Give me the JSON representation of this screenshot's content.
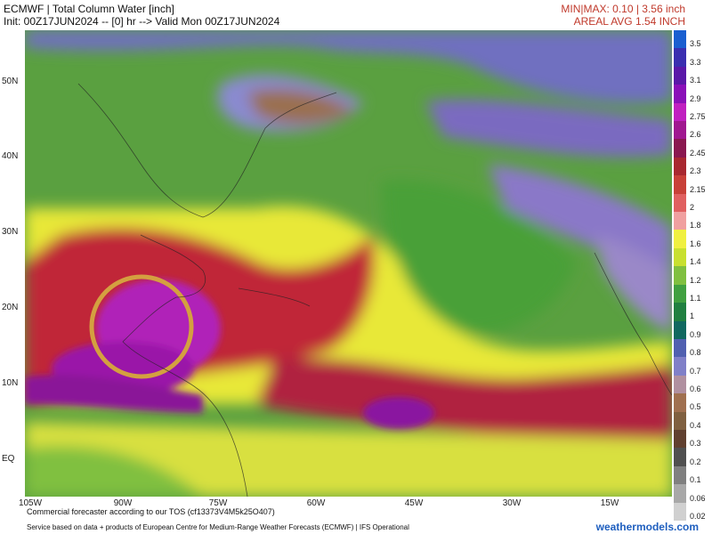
{
  "header": {
    "title": "ECMWF | Total Column Water [inch]",
    "init_line": "Init: 00Z17JUN2024 -- [0] hr --> Valid Mon 00Z17JUN2024",
    "minmax": "MIN|MAX: 0.10 | 3.56 inch",
    "areal_avg": "AREAL AVG 1.54 INCH"
  },
  "map": {
    "lat_labels": [
      "50N",
      "40N",
      "30N",
      "20N",
      "10N",
      "EQ"
    ],
    "lon_labels": [
      "105W",
      "90W",
      "75W",
      "60W",
      "45W",
      "30W",
      "15W"
    ],
    "highlight_circle_color": "#d4a040"
  },
  "colorbar": {
    "labels": [
      "3.5",
      "3.3",
      "3.1",
      "2.9",
      "2.75",
      "2.6",
      "2.45",
      "2.3",
      "2.15",
      "2",
      "1.8",
      "1.6",
      "1.4",
      "1.2",
      "1.1",
      "1",
      "0.9",
      "0.8",
      "0.7",
      "0.6",
      "0.5",
      "0.4",
      "0.3",
      "0.2",
      "0.1",
      "0.06",
      "0.02"
    ],
    "colors": [
      "#1a5fd0",
      "#3a2fb0",
      "#5a18a8",
      "#8a10b8",
      "#c020c0",
      "#a01890",
      "#8a1850",
      "#a82830",
      "#c84038",
      "#e06060",
      "#f0a0a0",
      "#f0f040",
      "#c8e030",
      "#80c040",
      "#40a040",
      "#208040",
      "#106860",
      "#5060b0",
      "#8080c8",
      "#b090a0",
      "#a07050",
      "#806040",
      "#604030",
      "#505050",
      "#808080",
      "#a8a8a8",
      "#d0d0d0"
    ]
  },
  "footer": {
    "tos_line": "Commercial forecaster according to our TOS (cf13373V4M5k25O407)",
    "service_line": "Service based on data + products of European Centre for Medium-Range Weather Forecasts (ECMWF) | IFS Operational",
    "site": "weathermodels.com"
  }
}
